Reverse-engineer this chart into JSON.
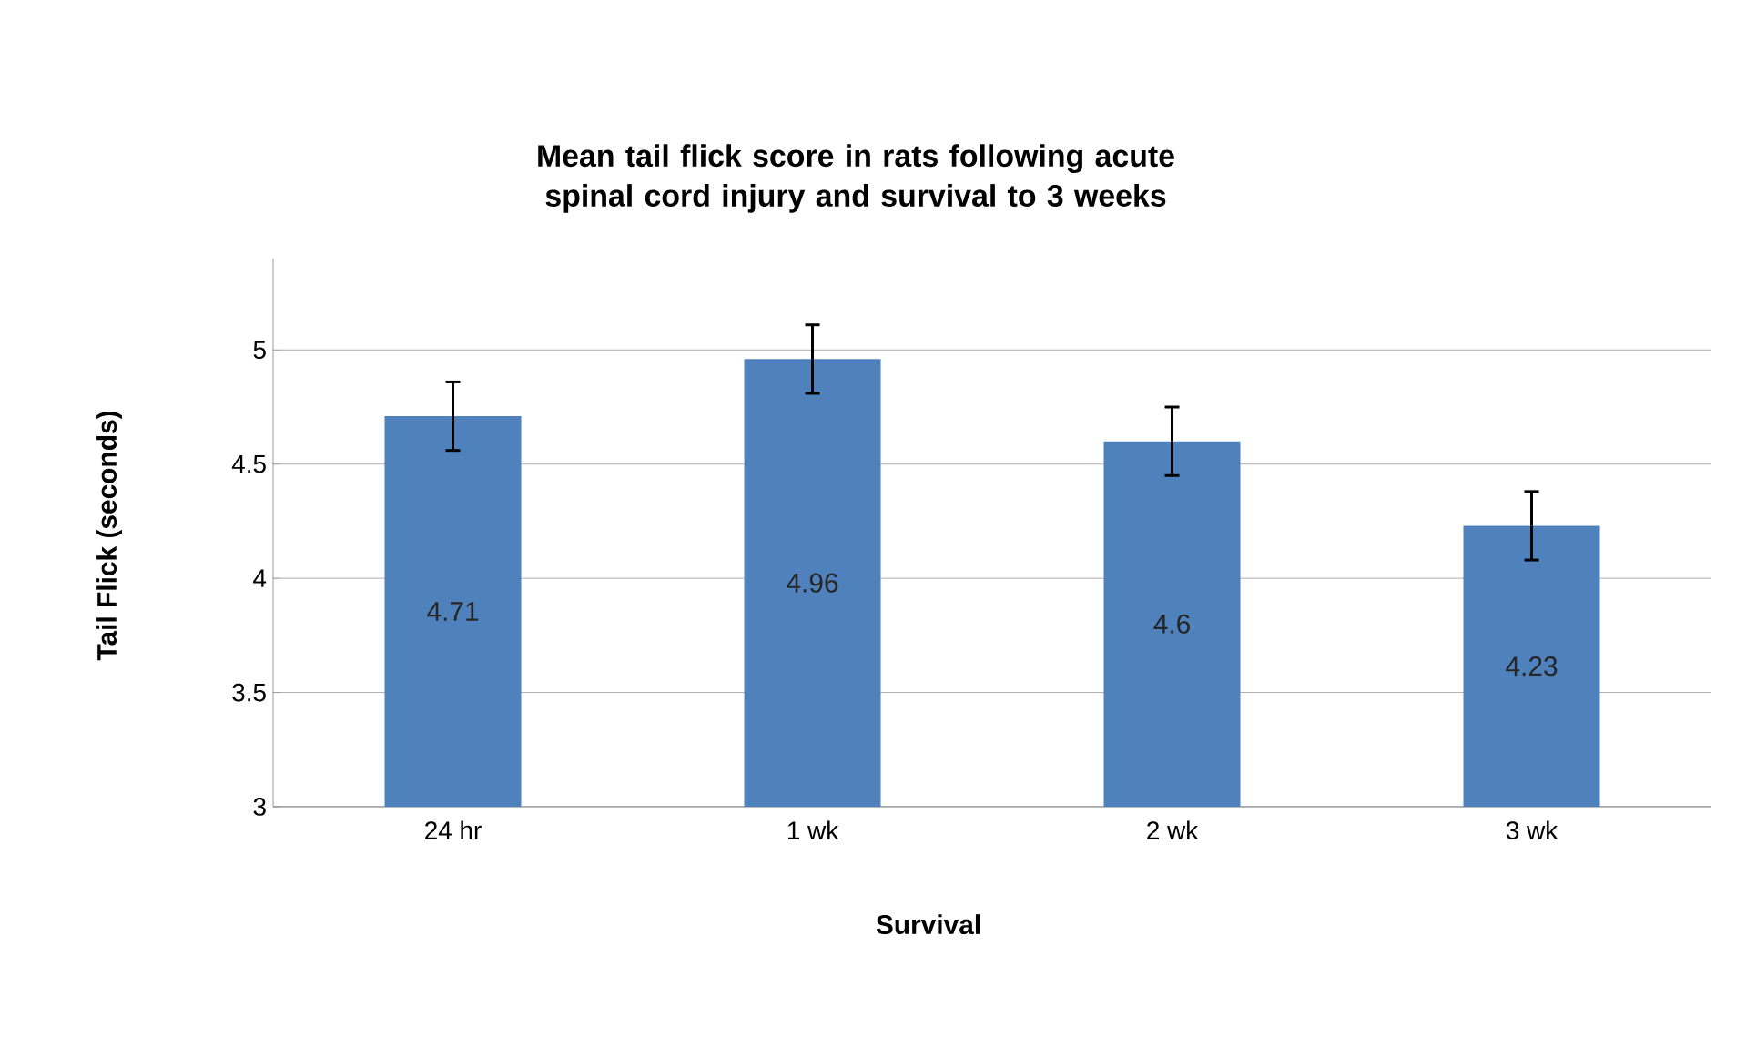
{
  "chart_data": {
    "type": "bar",
    "title": "Mean tail flick score in rats following acute spinal cord injury and survival to 3 weeks",
    "xlabel": "Survival",
    "ylabel": "Tail Flick (seconds)",
    "categories": [
      "24 hr",
      "1 wk",
      "2 wk",
      "3 wk"
    ],
    "values": [
      4.71,
      4.96,
      4.6,
      4.23
    ],
    "errors": [
      0.15,
      0.15,
      0.15,
      0.15
    ],
    "color": "#4f81bd",
    "ylim": [
      3,
      5.4
    ],
    "yticks": [
      3,
      3.5,
      4,
      4.5,
      5
    ],
    "grid": "y",
    "data_labels": true
  }
}
